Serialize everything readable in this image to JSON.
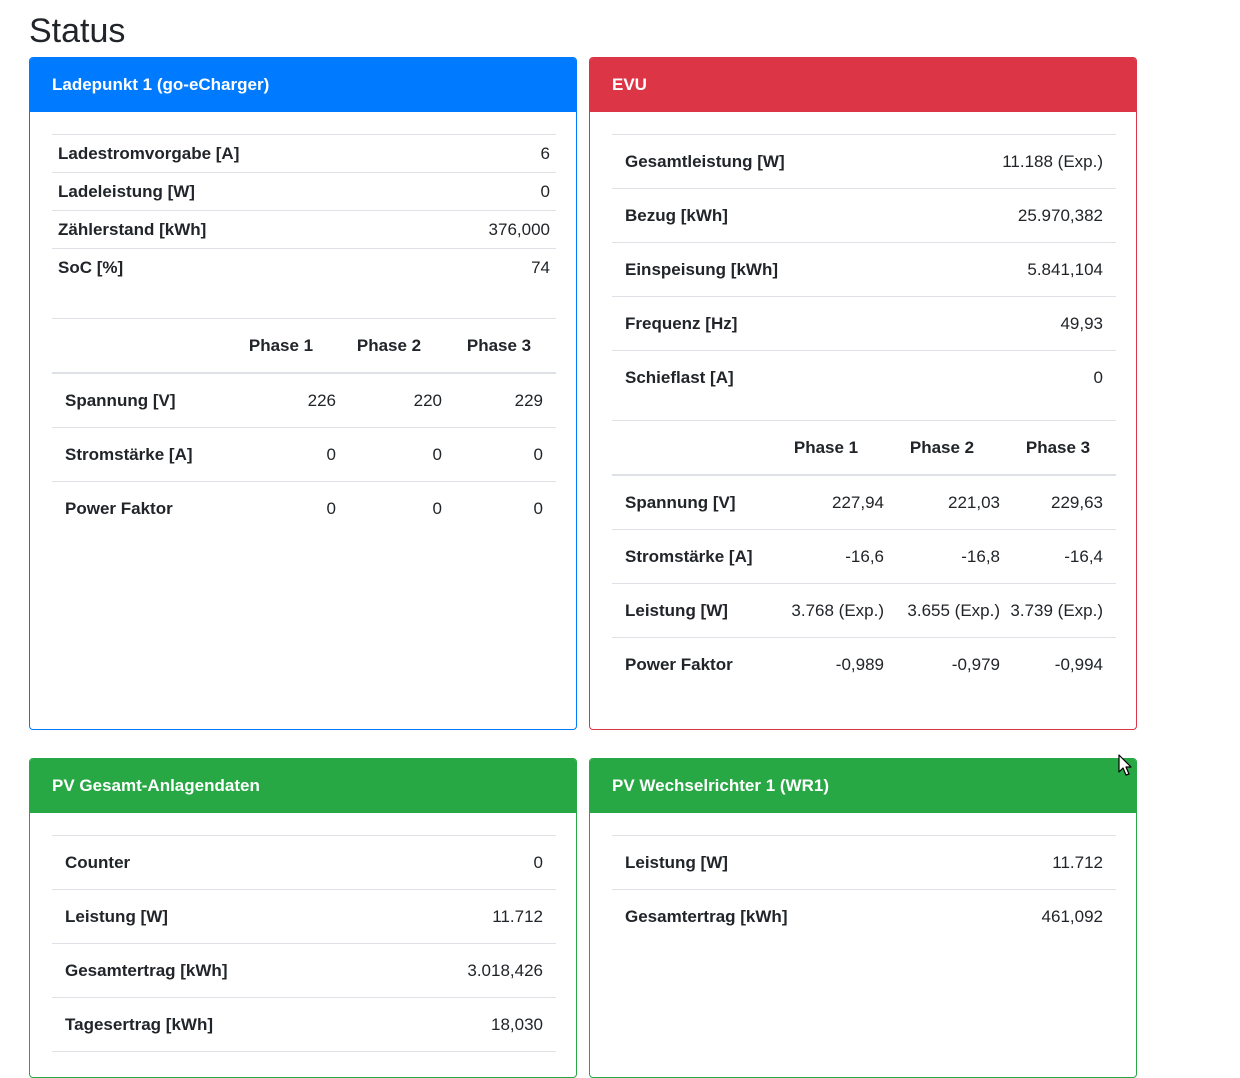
{
  "page": {
    "title": "Status"
  },
  "colors": {
    "primary": "#007bff",
    "danger": "#dc3545",
    "success": "#28a745"
  },
  "ladepunkt": {
    "title": "Ladepunkt 1 (go-eCharger)",
    "rows": [
      {
        "label": "Ladestromvorgabe [A]",
        "value": "6"
      },
      {
        "label": "Ladeleistung [W]",
        "value": "0"
      },
      {
        "label": "Zählerstand [kWh]",
        "value": "376,000"
      },
      {
        "label": "SoC [%]",
        "value": "74"
      }
    ],
    "phase_headers": [
      "Phase 1",
      "Phase 2",
      "Phase 3"
    ],
    "phase_rows": [
      {
        "label": "Spannung [V]",
        "values": [
          "226",
          "220",
          "229"
        ]
      },
      {
        "label": "Stromstärke [A]",
        "values": [
          "0",
          "0",
          "0"
        ]
      },
      {
        "label": "Power Faktor",
        "values": [
          "0",
          "0",
          "0"
        ]
      }
    ]
  },
  "evu": {
    "title": "EVU",
    "rows": [
      {
        "label": "Gesamtleistung [W]",
        "value": "11.188 (Exp.)"
      },
      {
        "label": "Bezug [kWh]",
        "value": "25.970,382"
      },
      {
        "label": "Einspeisung [kWh]",
        "value": "5.841,104"
      },
      {
        "label": "Frequenz [Hz]",
        "value": "49,93"
      },
      {
        "label": "Schieflast [A]",
        "value": "0"
      }
    ],
    "phase_headers": [
      "Phase 1",
      "Phase 2",
      "Phase 3"
    ],
    "phase_rows": [
      {
        "label": "Spannung [V]",
        "values": [
          "227,94",
          "221,03",
          "229,63"
        ]
      },
      {
        "label": "Stromstärke [A]",
        "values": [
          "-16,6",
          "-16,8",
          "-16,4"
        ]
      },
      {
        "label": "Leistung [W]",
        "values": [
          "3.768 (Exp.)",
          "3.655 (Exp.)",
          "3.739 (Exp.)"
        ]
      },
      {
        "label": "Power Faktor",
        "values": [
          "-0,989",
          "-0,979",
          "-0,994"
        ]
      }
    ]
  },
  "pv_gesamt": {
    "title": "PV Gesamt-Anlagendaten",
    "rows": [
      {
        "label": "Counter",
        "value": "0"
      },
      {
        "label": "Leistung [W]",
        "value": "11.712"
      },
      {
        "label": "Gesamtertrag [kWh]",
        "value": "3.018,426"
      },
      {
        "label": "Tagesertrag [kWh]",
        "value": "18,030"
      }
    ]
  },
  "pv_wr1": {
    "title": "PV Wechselrichter 1 (WR1)",
    "rows": [
      {
        "label": "Leistung [W]",
        "value": "11.712"
      },
      {
        "label": "Gesamtertrag [kWh]",
        "value": "461,092"
      }
    ]
  },
  "cursor": {
    "icon": "mouse-pointer-icon"
  }
}
